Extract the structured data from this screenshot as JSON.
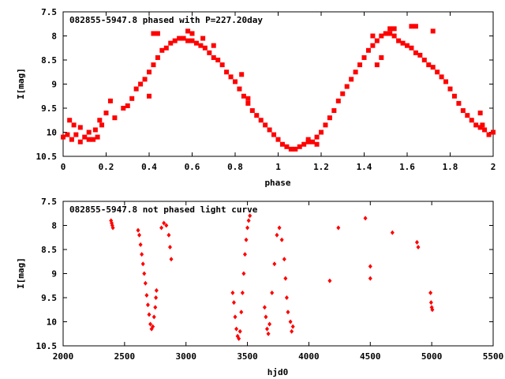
{
  "chart_data": [
    {
      "type": "scatter",
      "title": "082855-5947.8 phased with P=227.20day",
      "xlabel": "phase",
      "ylabel": "I[mag]",
      "xlim": [
        0,
        2
      ],
      "ylim": [
        10.5,
        7.5
      ],
      "y_inverted": true,
      "grid": false,
      "marker_color": "#ff0000",
      "x_ticks": [
        "0",
        "0.2",
        "0.4",
        "0.6",
        "0.8",
        "1",
        "1.2",
        "1.4",
        "1.6",
        "1.8",
        "2"
      ],
      "y_ticks": [
        "7.5",
        "8",
        "8.5",
        "9",
        "9.5",
        "10",
        "10.5"
      ],
      "series": [
        {
          "points": [
            [
              0.0,
              10.1
            ],
            [
              0.02,
              10.05
            ],
            [
              0.03,
              9.75
            ],
            [
              0.04,
              10.15
            ],
            [
              0.05,
              9.85
            ],
            [
              0.06,
              10.05
            ],
            [
              0.08,
              9.9
            ],
            [
              0.1,
              10.1
            ],
            [
              0.12,
              10.0
            ],
            [
              0.14,
              10.15
            ],
            [
              0.15,
              9.95
            ],
            [
              0.16,
              10.1
            ],
            [
              0.17,
              9.75
            ],
            [
              0.18,
              9.85
            ],
            [
              0.2,
              9.6
            ],
            [
              0.22,
              9.35
            ],
            [
              0.28,
              9.5
            ],
            [
              0.3,
              9.45
            ],
            [
              0.32,
              9.3
            ],
            [
              0.34,
              9.1
            ],
            [
              0.36,
              9.0
            ],
            [
              0.38,
              8.9
            ],
            [
              0.4,
              8.75
            ],
            [
              0.42,
              8.6
            ],
            [
              0.44,
              8.45
            ],
            [
              0.46,
              8.3
            ],
            [
              0.48,
              8.25
            ],
            [
              0.5,
              8.15
            ],
            [
              0.52,
              8.1
            ],
            [
              0.54,
              8.05
            ],
            [
              0.56,
              8.05
            ],
            [
              0.58,
              8.1
            ],
            [
              0.6,
              8.1
            ],
            [
              0.62,
              8.15
            ],
            [
              0.64,
              8.2
            ],
            [
              0.66,
              8.25
            ],
            [
              0.68,
              8.35
            ],
            [
              0.7,
              8.45
            ],
            [
              0.72,
              8.5
            ],
            [
              0.74,
              8.6
            ],
            [
              0.76,
              8.75
            ],
            [
              0.78,
              8.85
            ],
            [
              0.8,
              8.95
            ],
            [
              0.82,
              9.1
            ],
            [
              0.84,
              9.25
            ],
            [
              0.86,
              9.4
            ],
            [
              0.88,
              9.55
            ],
            [
              0.9,
              9.65
            ],
            [
              0.92,
              9.75
            ],
            [
              0.94,
              9.85
            ],
            [
              0.96,
              9.95
            ],
            [
              0.98,
              10.05
            ],
            [
              1.0,
              10.15
            ],
            [
              1.02,
              10.25
            ],
            [
              1.04,
              10.3
            ],
            [
              1.06,
              10.35
            ],
            [
              1.08,
              10.35
            ],
            [
              1.1,
              10.3
            ],
            [
              1.12,
              10.25
            ],
            [
              1.14,
              10.2
            ],
            [
              1.16,
              10.2
            ],
            [
              1.18,
              10.1
            ],
            [
              1.2,
              10.0
            ],
            [
              1.22,
              9.85
            ],
            [
              1.24,
              9.7
            ],
            [
              1.26,
              9.55
            ],
            [
              1.28,
              9.35
            ],
            [
              1.3,
              9.2
            ],
            [
              1.32,
              9.05
            ],
            [
              1.34,
              8.9
            ],
            [
              1.36,
              8.75
            ],
            [
              1.38,
              8.6
            ],
            [
              1.4,
              8.45
            ],
            [
              1.42,
              8.3
            ],
            [
              1.44,
              8.2
            ],
            [
              1.46,
              8.1
            ],
            [
              1.48,
              8.0
            ],
            [
              1.5,
              7.95
            ],
            [
              1.52,
              7.95
            ],
            [
              1.54,
              8.0
            ],
            [
              1.56,
              8.1
            ],
            [
              1.58,
              8.15
            ],
            [
              1.6,
              8.2
            ],
            [
              1.62,
              8.25
            ],
            [
              1.64,
              8.35
            ],
            [
              1.66,
              8.4
            ],
            [
              1.68,
              8.5
            ],
            [
              1.7,
              8.6
            ],
            [
              1.72,
              8.65
            ],
            [
              1.74,
              8.75
            ],
            [
              1.76,
              8.85
            ],
            [
              1.78,
              8.95
            ],
            [
              1.8,
              9.1
            ],
            [
              1.82,
              9.25
            ],
            [
              1.84,
              9.4
            ],
            [
              1.86,
              9.55
            ],
            [
              1.88,
              9.65
            ],
            [
              1.9,
              9.75
            ],
            [
              1.92,
              9.85
            ],
            [
              1.94,
              9.9
            ],
            [
              1.96,
              9.95
            ],
            [
              1.98,
              10.05
            ],
            [
              2.0,
              10.0
            ],
            [
              0.42,
              7.95
            ],
            [
              0.44,
              7.95
            ],
            [
              0.58,
              7.9
            ],
            [
              0.6,
              7.95
            ],
            [
              0.65,
              8.05
            ],
            [
              0.7,
              8.2
            ],
            [
              0.83,
              8.8
            ],
            [
              1.44,
              8.0
            ],
            [
              1.52,
              7.85
            ],
            [
              1.54,
              7.85
            ],
            [
              1.62,
              7.8
            ],
            [
              1.64,
              7.8
            ],
            [
              1.72,
              7.9
            ],
            [
              1.94,
              9.6
            ],
            [
              1.95,
              9.85
            ],
            [
              0.4,
              9.25
            ],
            [
              0.86,
              9.3
            ],
            [
              1.14,
              10.15
            ],
            [
              1.18,
              10.25
            ],
            [
              1.46,
              8.6
            ],
            [
              1.48,
              8.45
            ],
            [
              0.08,
              10.2
            ],
            [
              0.12,
              10.15
            ],
            [
              0.24,
              9.7
            ]
          ]
        }
      ]
    },
    {
      "type": "scatter",
      "title": "082855-5947.8 not phased light curve",
      "xlabel": "hjd0",
      "ylabel": "I[mag]",
      "xlim": [
        2000,
        5500
      ],
      "ylim": [
        10.5,
        7.5
      ],
      "y_inverted": true,
      "grid": false,
      "marker_color": "#ff0000",
      "x_ticks": [
        "2000",
        "2500",
        "3000",
        "3500",
        "4000",
        "4500",
        "5000",
        "5500"
      ],
      "y_ticks": [
        "7.5",
        "8",
        "8.5",
        "9",
        "9.5",
        "10",
        "10.5"
      ],
      "series": [
        {
          "points": [
            [
              2390,
              7.9
            ],
            [
              2395,
              7.95
            ],
            [
              2400,
              8.0
            ],
            [
              2405,
              8.05
            ],
            [
              2610,
              8.1
            ],
            [
              2620,
              8.2
            ],
            [
              2630,
              8.4
            ],
            [
              2640,
              8.6
            ],
            [
              2650,
              8.8
            ],
            [
              2660,
              9.0
            ],
            [
              2670,
              9.2
            ],
            [
              2680,
              9.45
            ],
            [
              2690,
              9.65
            ],
            [
              2700,
              9.85
            ],
            [
              2710,
              10.05
            ],
            [
              2720,
              10.15
            ],
            [
              2730,
              10.1
            ],
            [
              2740,
              9.9
            ],
            [
              2750,
              9.7
            ],
            [
              2755,
              9.5
            ],
            [
              2760,
              9.35
            ],
            [
              2800,
              8.05
            ],
            [
              2820,
              7.95
            ],
            [
              2840,
              8.0
            ],
            [
              2860,
              8.2
            ],
            [
              2870,
              8.45
            ],
            [
              2880,
              8.7
            ],
            [
              3380,
              9.4
            ],
            [
              3390,
              9.6
            ],
            [
              3400,
              9.9
            ],
            [
              3410,
              10.15
            ],
            [
              3420,
              10.3
            ],
            [
              3430,
              10.35
            ],
            [
              3440,
              10.2
            ],
            [
              3450,
              9.8
            ],
            [
              3460,
              9.4
            ],
            [
              3470,
              9.0
            ],
            [
              3480,
              8.6
            ],
            [
              3490,
              8.3
            ],
            [
              3500,
              8.05
            ],
            [
              3510,
              7.9
            ],
            [
              3520,
              7.8
            ],
            [
              3640,
              9.7
            ],
            [
              3650,
              9.9
            ],
            [
              3660,
              10.15
            ],
            [
              3670,
              10.25
            ],
            [
              3680,
              10.05
            ],
            [
              3700,
              9.4
            ],
            [
              3720,
              8.8
            ],
            [
              3740,
              8.2
            ],
            [
              3760,
              8.05
            ],
            [
              3780,
              8.3
            ],
            [
              3800,
              8.7
            ],
            [
              3810,
              9.1
            ],
            [
              3820,
              9.5
            ],
            [
              3830,
              9.8
            ],
            [
              3850,
              10.0
            ],
            [
              3860,
              10.2
            ],
            [
              3870,
              10.1
            ],
            [
              4170,
              9.15
            ],
            [
              4240,
              8.05
            ],
            [
              4460,
              7.85
            ],
            [
              4500,
              8.85
            ],
            [
              4500,
              9.1
            ],
            [
              4680,
              8.15
            ],
            [
              4880,
              8.35
            ],
            [
              4890,
              8.45
            ],
            [
              4990,
              9.4
            ],
            [
              4995,
              9.6
            ],
            [
              5000,
              9.7
            ],
            [
              5005,
              9.75
            ]
          ]
        }
      ]
    }
  ]
}
